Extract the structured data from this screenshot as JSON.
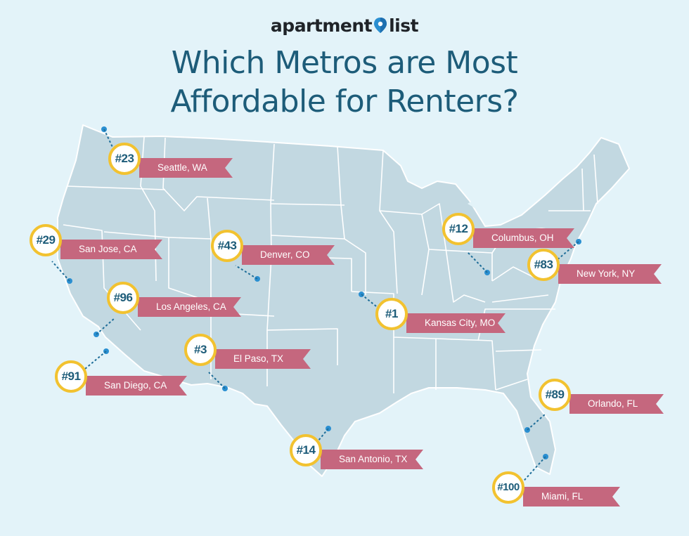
{
  "brand": {
    "name_part1": "apartment",
    "name_part2": "list"
  },
  "title": {
    "line1": "Which Metros are Most",
    "line2": "Affordable for Renters?"
  },
  "colors": {
    "background": "#e3f3f9",
    "map_fill": "#c2d8e1",
    "title": "#1d5c79",
    "ribbon": "#c5677e",
    "ring": "#f2c230",
    "pin": "#2a8fd1",
    "leader": "#1e6d98"
  },
  "cities": [
    {
      "rank": "#23",
      "label": "Seattle, WA"
    },
    {
      "rank": "#29",
      "label": "San Jose, CA"
    },
    {
      "rank": "#43",
      "label": "Denver, CO"
    },
    {
      "rank": "#12",
      "label": "Columbus, OH"
    },
    {
      "rank": "#83",
      "label": "New York, NY"
    },
    {
      "rank": "#96",
      "label": "Los Angeles, CA"
    },
    {
      "rank": "#1",
      "label": "Kansas City, MO"
    },
    {
      "rank": "#3",
      "label": "El Paso, TX"
    },
    {
      "rank": "#91",
      "label": "San Diego, CA"
    },
    {
      "rank": "#89",
      "label": "Orlando, FL"
    },
    {
      "rank": "#14",
      "label": "San Antonio, TX"
    },
    {
      "rank": "#100",
      "label": "Miami, FL"
    }
  ]
}
